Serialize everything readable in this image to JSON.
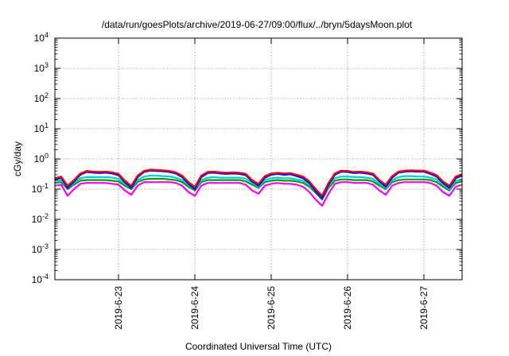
{
  "chart_data": {
    "type": "line",
    "title": "/data/run/goesPlots/archive/2019-06-27/09:00/flux/../bryn/5daysMoon.plot",
    "xlabel": "Coordinated Universal Time (UTC)",
    "ylabel": "cGy/day",
    "y_scale": "log",
    "ylim": [
      0.0001,
      10000
    ],
    "y_ticks": [
      {
        "base": "10",
        "exp": "-4"
      },
      {
        "base": "10",
        "exp": "-3"
      },
      {
        "base": "10",
        "exp": "-2"
      },
      {
        "base": "10",
        "exp": "-1"
      },
      {
        "base": "10",
        "exp": "0"
      },
      {
        "base": "10",
        "exp": "1"
      },
      {
        "base": "10",
        "exp": "2"
      },
      {
        "base": "10",
        "exp": "3"
      },
      {
        "base": "10",
        "exp": "4"
      }
    ],
    "x_ticks": [
      "2019-6-23",
      "2019-6-24",
      "2019-6-25",
      "2019-6-26",
      "2019-6-27"
    ],
    "xlim": [
      "2019-06-22T04:00",
      "2019-06-27T12:00"
    ],
    "grid": true,
    "legend": "none",
    "x": [
      "2019-06-22T04:00",
      "2019-06-22T06:00",
      "2019-06-22T08:00",
      "2019-06-22T10:00",
      "2019-06-22T12:00",
      "2019-06-22T14:00",
      "2019-06-22T16:00",
      "2019-06-22T18:00",
      "2019-06-22T20:00",
      "2019-06-22T22:00",
      "2019-06-23T00:00",
      "2019-06-23T02:00",
      "2019-06-23T04:00",
      "2019-06-23T06:00",
      "2019-06-23T08:00",
      "2019-06-23T10:00",
      "2019-06-23T12:00",
      "2019-06-23T14:00",
      "2019-06-23T16:00",
      "2019-06-23T18:00",
      "2019-06-23T20:00",
      "2019-06-23T22:00",
      "2019-06-24T00:00",
      "2019-06-24T02:00",
      "2019-06-24T04:00",
      "2019-06-24T06:00",
      "2019-06-24T08:00",
      "2019-06-24T10:00",
      "2019-06-24T12:00",
      "2019-06-24T14:00",
      "2019-06-24T16:00",
      "2019-06-24T18:00",
      "2019-06-24T20:00",
      "2019-06-24T22:00",
      "2019-06-25T00:00",
      "2019-06-25T02:00",
      "2019-06-25T04:00",
      "2019-06-25T06:00",
      "2019-06-25T08:00",
      "2019-06-25T10:00",
      "2019-06-25T12:00",
      "2019-06-25T14:00",
      "2019-06-25T16:00",
      "2019-06-25T18:00",
      "2019-06-25T20:00",
      "2019-06-25T22:00",
      "2019-06-26T00:00",
      "2019-06-26T02:00",
      "2019-06-26T04:00",
      "2019-06-26T06:00",
      "2019-06-26T08:00",
      "2019-06-26T10:00",
      "2019-06-26T12:00",
      "2019-06-26T14:00",
      "2019-06-26T16:00",
      "2019-06-26T18:00",
      "2019-06-26T20:00",
      "2019-06-26T22:00",
      "2019-06-27T00:00",
      "2019-06-27T02:00",
      "2019-06-27T04:00",
      "2019-06-27T06:00",
      "2019-06-27T08:00",
      "2019-06-27T10:00",
      "2019-06-27T12:00"
    ],
    "series": [
      {
        "color": "#ff0000",
        "values": [
          0.23,
          0.26,
          0.13,
          0.2,
          0.33,
          0.4,
          0.38,
          0.37,
          0.38,
          0.36,
          0.32,
          0.19,
          0.13,
          0.28,
          0.4,
          0.44,
          0.43,
          0.42,
          0.4,
          0.36,
          0.28,
          0.17,
          0.12,
          0.28,
          0.37,
          0.38,
          0.36,
          0.35,
          0.36,
          0.35,
          0.32,
          0.2,
          0.15,
          0.27,
          0.33,
          0.35,
          0.33,
          0.34,
          0.3,
          0.26,
          0.18,
          0.1,
          0.06,
          0.16,
          0.33,
          0.41,
          0.4,
          0.37,
          0.38,
          0.36,
          0.33,
          0.2,
          0.14,
          0.27,
          0.38,
          0.41,
          0.42,
          0.41,
          0.41,
          0.35,
          0.29,
          0.18,
          0.13,
          0.26,
          0.31
        ]
      },
      {
        "color": "#0000ff",
        "values": [
          0.21,
          0.24,
          0.11,
          0.18,
          0.3,
          0.37,
          0.35,
          0.34,
          0.35,
          0.33,
          0.29,
          0.17,
          0.11,
          0.25,
          0.37,
          0.41,
          0.4,
          0.39,
          0.37,
          0.33,
          0.25,
          0.15,
          0.1,
          0.25,
          0.34,
          0.35,
          0.33,
          0.32,
          0.33,
          0.32,
          0.29,
          0.18,
          0.13,
          0.24,
          0.3,
          0.32,
          0.3,
          0.31,
          0.27,
          0.23,
          0.16,
          0.085,
          0.05,
          0.14,
          0.3,
          0.38,
          0.37,
          0.34,
          0.35,
          0.33,
          0.3,
          0.18,
          0.12,
          0.24,
          0.35,
          0.38,
          0.39,
          0.38,
          0.38,
          0.32,
          0.26,
          0.16,
          0.11,
          0.23,
          0.28
        ]
      },
      {
        "color": "#00ccdd",
        "values": [
          0.19,
          0.2,
          0.11,
          0.16,
          0.23,
          0.25,
          0.25,
          0.25,
          0.25,
          0.24,
          0.22,
          0.15,
          0.11,
          0.2,
          0.26,
          0.28,
          0.28,
          0.27,
          0.26,
          0.24,
          0.2,
          0.14,
          0.1,
          0.2,
          0.24,
          0.25,
          0.24,
          0.24,
          0.24,
          0.24,
          0.22,
          0.16,
          0.12,
          0.2,
          0.23,
          0.24,
          0.23,
          0.23,
          0.21,
          0.19,
          0.14,
          0.085,
          0.05,
          0.13,
          0.23,
          0.26,
          0.26,
          0.25,
          0.25,
          0.24,
          0.22,
          0.15,
          0.11,
          0.2,
          0.25,
          0.27,
          0.27,
          0.26,
          0.26,
          0.24,
          0.21,
          0.14,
          0.1,
          0.19,
          0.21
        ]
      },
      {
        "color": "#00a000",
        "values": [
          0.16,
          0.17,
          0.1,
          0.14,
          0.19,
          0.2,
          0.2,
          0.2,
          0.2,
          0.19,
          0.18,
          0.13,
          0.1,
          0.17,
          0.21,
          0.22,
          0.22,
          0.22,
          0.21,
          0.2,
          0.17,
          0.12,
          0.09,
          0.17,
          0.2,
          0.2,
          0.2,
          0.2,
          0.2,
          0.2,
          0.18,
          0.14,
          0.11,
          0.17,
          0.19,
          0.2,
          0.19,
          0.19,
          0.18,
          0.16,
          0.12,
          0.075,
          0.045,
          0.11,
          0.19,
          0.21,
          0.21,
          0.2,
          0.2,
          0.2,
          0.18,
          0.13,
          0.1,
          0.17,
          0.2,
          0.21,
          0.21,
          0.21,
          0.21,
          0.2,
          0.17,
          0.12,
          0.09,
          0.16,
          0.18
        ]
      },
      {
        "color": "#ff00ff",
        "values": [
          0.13,
          0.14,
          0.06,
          0.1,
          0.15,
          0.16,
          0.16,
          0.16,
          0.16,
          0.15,
          0.14,
          0.09,
          0.065,
          0.13,
          0.17,
          0.17,
          0.17,
          0.17,
          0.17,
          0.16,
          0.13,
          0.08,
          0.06,
          0.13,
          0.16,
          0.16,
          0.16,
          0.16,
          0.16,
          0.16,
          0.14,
          0.09,
          0.07,
          0.13,
          0.15,
          0.16,
          0.15,
          0.15,
          0.14,
          0.12,
          0.08,
          0.045,
          0.028,
          0.07,
          0.15,
          0.17,
          0.17,
          0.16,
          0.16,
          0.16,
          0.14,
          0.09,
          0.065,
          0.13,
          0.16,
          0.17,
          0.17,
          0.17,
          0.17,
          0.16,
          0.13,
          0.08,
          0.06,
          0.12,
          0.14
        ]
      }
    ]
  }
}
